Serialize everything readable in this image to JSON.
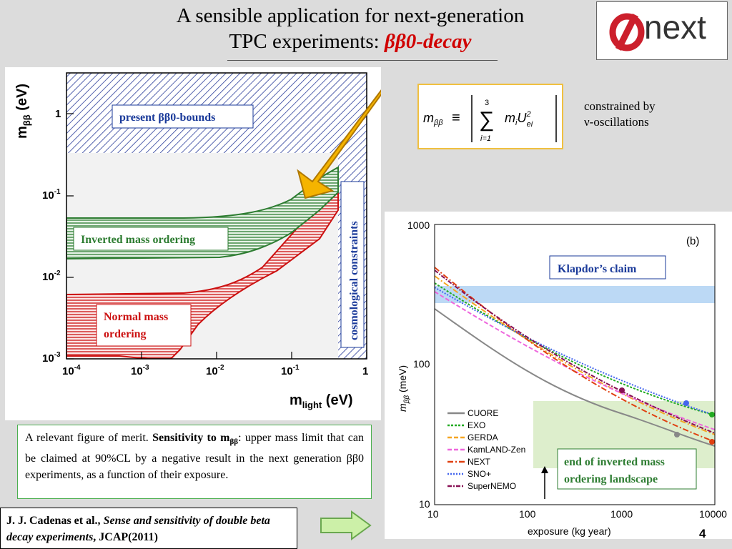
{
  "slide": {
    "title_line1": "A sensible application for  next-generation",
    "title_line2": "TPC experiments: ",
    "title_highlight": "ββ0-decay",
    "logo_text": "next",
    "page_number": "4"
  },
  "left_plot": {
    "y_axis_label": "m",
    "y_axis_sub": "ββ",
    "y_axis_unit": " (eV)",
    "x_axis_label": "m",
    "x_axis_sub": "light",
    "x_axis_unit": " (eV)",
    "x_ticks": [
      "10",
      "10",
      "10",
      "10",
      "1"
    ],
    "x_tick_exps": [
      "-4",
      "-3",
      "-2",
      "-1",
      ""
    ],
    "y_ticks": [
      "1",
      "10",
      "10",
      "10"
    ],
    "y_tick_exps": [
      "",
      "-1",
      "-2",
      "-3"
    ],
    "labels": {
      "present": "present ββ0-bounds",
      "inverted": "Inverted mass ordering",
      "normal_1": "Normal mass",
      "normal_2": "ordering",
      "cosmo": "cosmological constraints"
    },
    "colors": {
      "inverted": "#2e7d32",
      "normal": "#cc1111",
      "present": "#1a3a9a",
      "arrow": "#f5b400"
    }
  },
  "formula": {
    "lhs": "m",
    "lhs_sub": "ββ",
    "equiv": "≡",
    "sum_upper": "3",
    "sum_lower": "i=1",
    "term": "m",
    "term_sub": "i",
    "term_u": "U",
    "term_u_sub": "ei",
    "term_u_sup": "2"
  },
  "constraint_note": {
    "line1": "constrained by",
    "line2": "ν-oscillations"
  },
  "right_plot": {
    "panel_label": "(b)",
    "y_label": "m",
    "y_label_sub": "ββ",
    "y_label_unit": " (meV)",
    "x_label": "exposure (kg year)",
    "x_ticks": [
      "10",
      "100",
      "1000",
      "10000"
    ],
    "y_ticks": [
      "1000",
      "100",
      "10"
    ],
    "klapdor": "Klapdor’s claim",
    "end_inverted_1": "end of inverted mass",
    "end_inverted_2": "ordering landscape",
    "legend": [
      {
        "name": "CUORE",
        "color": "#888888"
      },
      {
        "name": "EXO",
        "color": "#22aa22"
      },
      {
        "name": "GERDA",
        "color": "#f5a623"
      },
      {
        "name": "KamLAND-Zen",
        "color": "#ee66dd"
      },
      {
        "name": "NEXT",
        "color": "#e04010"
      },
      {
        "name": "SNO+",
        "color": "#4466ee"
      },
      {
        "name": "SuperNEMO",
        "color": "#881155"
      }
    ]
  },
  "figure_of_merit": {
    "intro": "A relevant figure of merit. ",
    "bold": "Sensitivity to m",
    "bold_sub": "ββ",
    "rest": ": upper mass limit that can be claimed at 90%CL by a negative result in the next generation ββ0 experiments, as a function of their exposure."
  },
  "reference": {
    "authors": "J. J. Cadenas et al., ",
    "title": "Sense and sensitivity of double beta decay experiments",
    "journal": ", JCAP(2011)"
  }
}
